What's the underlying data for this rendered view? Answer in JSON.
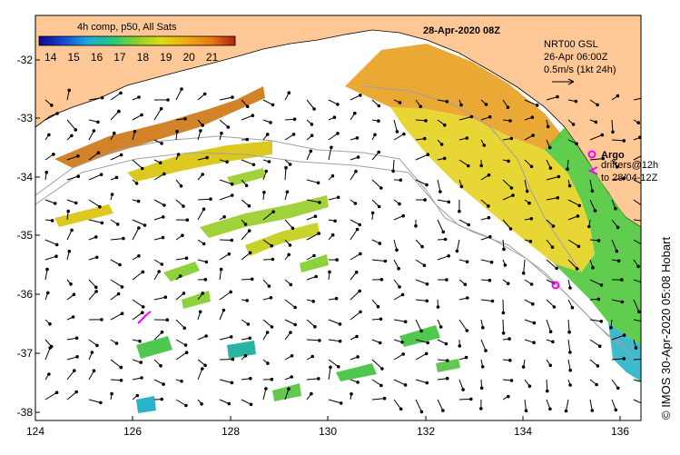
{
  "map": {
    "title": "28-Apr-2020 08Z",
    "product_label": "4h comp, p50, All Sats",
    "colorbar": {
      "ticks": [
        "14",
        "15",
        "16",
        "17",
        "18",
        "19",
        "20",
        "21"
      ],
      "min": 13.5,
      "max": 22
    },
    "current_info": {
      "line1": "NRT00 GSL",
      "line2": "26-Apr 06:00Z",
      "line3": "0.5m/s (1kt 24h)"
    },
    "legend": {
      "argo_label": "Argo",
      "drifters_line1": "drifters@12h",
      "drifters_line2": "to 28/04-12Z"
    },
    "x_ticks": [
      "124",
      "126",
      "128",
      "130",
      "132",
      "134",
      "136"
    ],
    "y_ticks": [
      "-32",
      "-33",
      "-34",
      "-35",
      "-36",
      "-37",
      "-38"
    ],
    "credit": "© IMOS 30-Apr-2020 05:08 Hobart",
    "colors": {
      "land": "#ffc896",
      "ocean": "#ffffff",
      "argo": "#ff00ff",
      "contour": "#a0a0a0"
    }
  }
}
